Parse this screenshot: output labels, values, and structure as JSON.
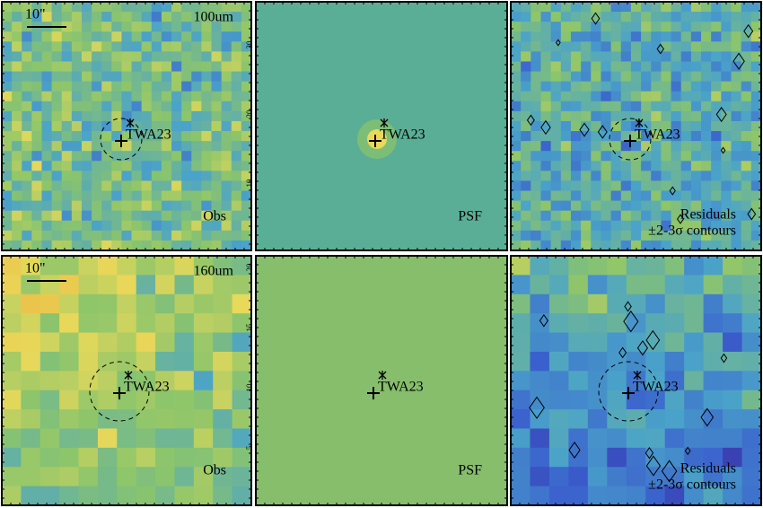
{
  "panels": [
    {
      "scale": "10\"",
      "band": "100um",
      "target": "TWA23",
      "label": "Obs"
    },
    {
      "target": "TWA23",
      "label": "PSF",
      "ticks": [
        "30",
        "20",
        "10"
      ]
    },
    {
      "target": "TWA23",
      "label": "Residuals",
      "note": "±2-3σ contours"
    },
    {
      "scale": "10\"",
      "band": "160um",
      "target": "TWA23",
      "label": "Obs"
    },
    {
      "target": "TWA23",
      "label": "PSF",
      "ticks": [
        "20",
        "15",
        "10",
        "5"
      ]
    },
    {
      "target": "TWA23",
      "label": "Residuals",
      "note": "±2-3σ contours"
    }
  ]
}
